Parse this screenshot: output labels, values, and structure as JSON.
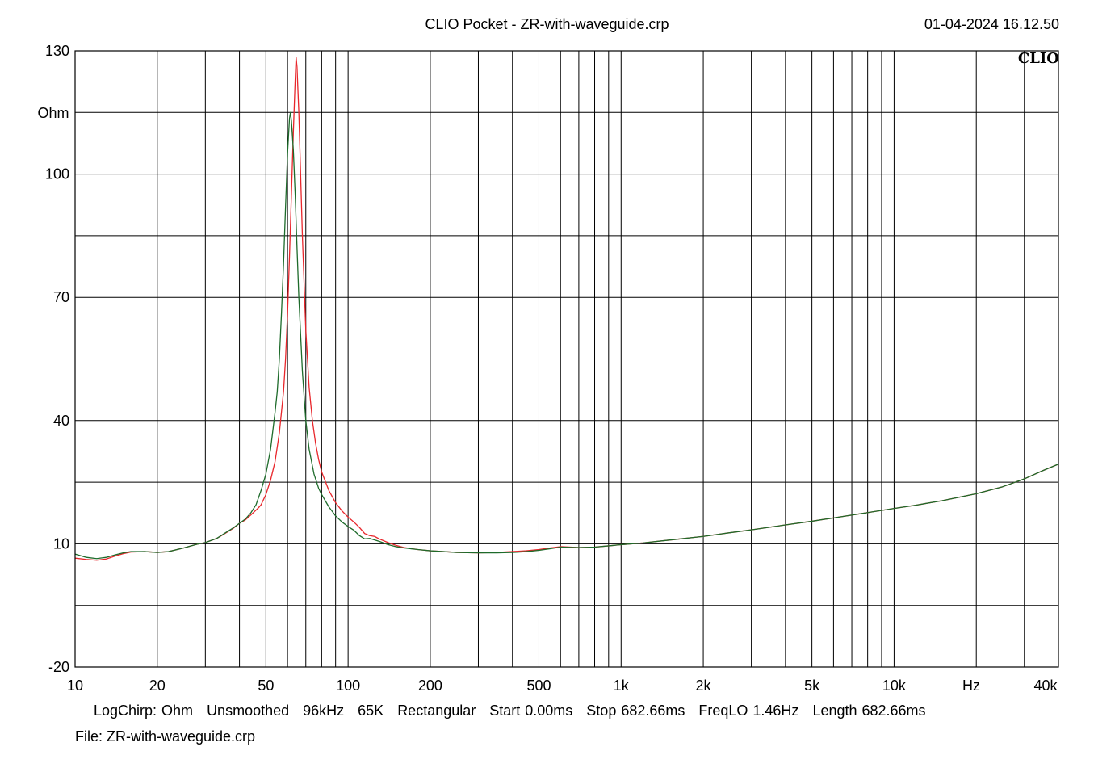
{
  "header": {
    "title": "CLIO Pocket - ZR-with-waveguide.crp",
    "datetime": "01-04-2024 16.12.50",
    "logo": "CLIO"
  },
  "footer": {
    "settings": [
      "LogChirp:  Ohm",
      "Unsmoothed",
      "96kHz",
      "65K",
      "Rectangular",
      "Start 0.00ms",
      "Stop 682.66ms",
      "FreqLO 1.46Hz",
      "Length 682.66ms"
    ],
    "file": "File: ZR-with-waveguide.crp"
  },
  "chart_data": {
    "type": "line",
    "x_scale": "log",
    "xlim": [
      10,
      40000
    ],
    "ylim": [
      -20,
      130
    ],
    "grid": true,
    "ylabel": "Ohm",
    "xlabel": "Hz",
    "x_ticks": [
      {
        "value": 10,
        "label": "10"
      },
      {
        "value": 20,
        "label": "20"
      },
      {
        "value": 50,
        "label": "50"
      },
      {
        "value": 100,
        "label": "100"
      },
      {
        "value": 200,
        "label": "200"
      },
      {
        "value": 500,
        "label": "500"
      },
      {
        "value": 1000,
        "label": "1k"
      },
      {
        "value": 2000,
        "label": "2k"
      },
      {
        "value": 5000,
        "label": "5k"
      },
      {
        "value": 10000,
        "label": "10k"
      },
      {
        "value": 40000,
        "label": "40k"
      }
    ],
    "y_ticks": [
      {
        "value": 130,
        "label": "130"
      },
      {
        "value": 100,
        "label": "100"
      },
      {
        "value": 70,
        "label": "70"
      },
      {
        "value": 40,
        "label": "40"
      },
      {
        "value": 10,
        "label": "10"
      },
      {
        "value": -20,
        "label": "-20"
      }
    ],
    "series": [
      {
        "color": "#e8262b",
        "points": [
          [
            10,
            6.5
          ],
          [
            11,
            6.2
          ],
          [
            12,
            6.0
          ],
          [
            13,
            6.3
          ],
          [
            14,
            7.0
          ],
          [
            15,
            7.6
          ],
          [
            16,
            8.0
          ],
          [
            18,
            8.1
          ],
          [
            20,
            7.9
          ],
          [
            22,
            8.1
          ],
          [
            25,
            9.0
          ],
          [
            28,
            9.9
          ],
          [
            30,
            10.3
          ],
          [
            33,
            11.3
          ],
          [
            35,
            12.3
          ],
          [
            38,
            13.8
          ],
          [
            40,
            15.0
          ],
          [
            42,
            15.8
          ],
          [
            44,
            17.0
          ],
          [
            46,
            18.2
          ],
          [
            47,
            18.8
          ],
          [
            48,
            19.5
          ],
          [
            50,
            22.0
          ],
          [
            52,
            25.5
          ],
          [
            54,
            30.0
          ],
          [
            56,
            37.0
          ],
          [
            58,
            47.0
          ],
          [
            59,
            55.0
          ],
          [
            60,
            66.0
          ],
          [
            61,
            80.0
          ],
          [
            62,
            95.0
          ],
          [
            63,
            110.0
          ],
          [
            64,
            123.0
          ],
          [
            64.5,
            128.5
          ],
          [
            65,
            126.0
          ],
          [
            66,
            115.0
          ],
          [
            67,
            100.0
          ],
          [
            68,
            85.0
          ],
          [
            70,
            62.0
          ],
          [
            72,
            48.0
          ],
          [
            74,
            40.0
          ],
          [
            76,
            34.5
          ],
          [
            78,
            30.5
          ],
          [
            80,
            27.5
          ],
          [
            85,
            23.0
          ],
          [
            90,
            20.0
          ],
          [
            95,
            18.0
          ],
          [
            100,
            16.5
          ],
          [
            105,
            15.3
          ],
          [
            110,
            14.0
          ],
          [
            115,
            12.5
          ],
          [
            120,
            12.0
          ],
          [
            125,
            11.8
          ],
          [
            130,
            11.2
          ],
          [
            140,
            10.3
          ],
          [
            150,
            9.6
          ],
          [
            160,
            9.1
          ],
          [
            180,
            8.6
          ],
          [
            200,
            8.3
          ],
          [
            250,
            7.9
          ],
          [
            300,
            7.8
          ],
          [
            350,
            7.9
          ],
          [
            400,
            8.1
          ],
          [
            450,
            8.3
          ],
          [
            500,
            8.6
          ],
          [
            550,
            9.0
          ],
          [
            600,
            9.3
          ],
          [
            700,
            9.1
          ],
          [
            800,
            9.2
          ],
          [
            900,
            9.5
          ],
          [
            1000,
            9.8
          ],
          [
            1200,
            10.2
          ],
          [
            1500,
            10.9
          ],
          [
            2000,
            11.8
          ],
          [
            2500,
            12.7
          ],
          [
            3000,
            13.4
          ],
          [
            4000,
            14.6
          ],
          [
            5000,
            15.5
          ],
          [
            6000,
            16.3
          ],
          [
            8000,
            17.6
          ],
          [
            10000,
            18.6
          ],
          [
            12000,
            19.4
          ],
          [
            15000,
            20.5
          ],
          [
            20000,
            22.2
          ],
          [
            25000,
            23.9
          ],
          [
            30000,
            25.8
          ],
          [
            35000,
            27.8
          ],
          [
            40000,
            29.4
          ]
        ]
      },
      {
        "color": "#1e6b2b",
        "points": [
          [
            10,
            7.5
          ],
          [
            11,
            6.7
          ],
          [
            12,
            6.4
          ],
          [
            13,
            6.7
          ],
          [
            14,
            7.3
          ],
          [
            15,
            7.8
          ],
          [
            16,
            8.1
          ],
          [
            18,
            8.1
          ],
          [
            20,
            7.9
          ],
          [
            22,
            8.1
          ],
          [
            25,
            9.0
          ],
          [
            28,
            9.9
          ],
          [
            30,
            10.3
          ],
          [
            33,
            11.3
          ],
          [
            35,
            12.4
          ],
          [
            38,
            13.9
          ],
          [
            40,
            15.0
          ],
          [
            42,
            16.0
          ],
          [
            44,
            17.5
          ],
          [
            46,
            19.5
          ],
          [
            48,
            23.0
          ],
          [
            50,
            27.0
          ],
          [
            52,
            33.0
          ],
          [
            54,
            42.0
          ],
          [
            55,
            47.0
          ],
          [
            56,
            55.0
          ],
          [
            57,
            66.0
          ],
          [
            58,
            78.0
          ],
          [
            59,
            92.0
          ],
          [
            60,
            105.0
          ],
          [
            61,
            113.5
          ],
          [
            61.5,
            115.0
          ],
          [
            62,
            113.0
          ],
          [
            63,
            106.0
          ],
          [
            64,
            95.0
          ],
          [
            65,
            82.0
          ],
          [
            66,
            70.0
          ],
          [
            68,
            52.0
          ],
          [
            70,
            40.0
          ],
          [
            72,
            33.0
          ],
          [
            75,
            27.0
          ],
          [
            78,
            23.5
          ],
          [
            80,
            22.0
          ],
          [
            85,
            19.0
          ],
          [
            90,
            16.8
          ],
          [
            95,
            15.3
          ],
          [
            100,
            14.2
          ],
          [
            105,
            13.3
          ],
          [
            110,
            12.0
          ],
          [
            115,
            11.2
          ],
          [
            120,
            11.3
          ],
          [
            130,
            10.6
          ],
          [
            140,
            9.8
          ],
          [
            150,
            9.3
          ],
          [
            160,
            9.0
          ],
          [
            180,
            8.6
          ],
          [
            200,
            8.3
          ],
          [
            250,
            7.9
          ],
          [
            300,
            7.8
          ],
          [
            350,
            7.8
          ],
          [
            400,
            7.9
          ],
          [
            450,
            8.1
          ],
          [
            500,
            8.4
          ],
          [
            550,
            8.8
          ],
          [
            600,
            9.2
          ],
          [
            700,
            9.1
          ],
          [
            800,
            9.2
          ],
          [
            900,
            9.5
          ],
          [
            1000,
            9.8
          ],
          [
            1200,
            10.2
          ],
          [
            1500,
            10.9
          ],
          [
            2000,
            11.8
          ],
          [
            2500,
            12.7
          ],
          [
            3000,
            13.4
          ],
          [
            4000,
            14.6
          ],
          [
            5000,
            15.5
          ],
          [
            6000,
            16.3
          ],
          [
            8000,
            17.6
          ],
          [
            10000,
            18.6
          ],
          [
            12000,
            19.4
          ],
          [
            15000,
            20.5
          ],
          [
            20000,
            22.2
          ],
          [
            25000,
            23.9
          ],
          [
            30000,
            25.8
          ],
          [
            35000,
            27.8
          ],
          [
            40000,
            29.4
          ]
        ]
      }
    ]
  }
}
